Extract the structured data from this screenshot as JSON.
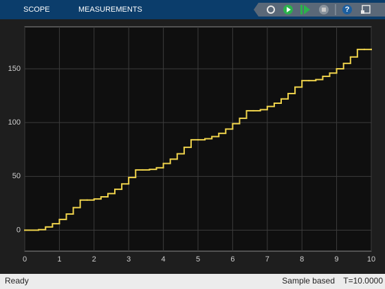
{
  "toolbar": {
    "tabs": [
      "SCOPE",
      "MEASUREMENTS"
    ],
    "help": "?"
  },
  "status": {
    "state": "Ready",
    "mode": "Sample based",
    "time": "T=10.0000"
  },
  "chart_data": {
    "type": "step",
    "color": "#f0d44c",
    "grid": true,
    "xlim": [
      0,
      10
    ],
    "ylim": [
      -19.5,
      189
    ],
    "xticks": [
      0,
      1,
      2,
      3,
      4,
      5,
      6,
      7,
      8,
      9,
      10
    ],
    "yticks": [
      0,
      50,
      100,
      150
    ],
    "x": [
      0,
      0.2,
      0.4,
      0.6,
      0.8,
      1,
      1.2,
      1.4,
      1.6,
      1.8,
      2,
      2.2,
      2.4,
      2.6,
      2.8,
      3,
      3.2,
      3.4,
      3.6,
      3.8,
      4,
      4.2,
      4.4,
      4.6,
      4.8,
      5,
      5.2,
      5.4,
      5.6,
      5.8,
      6,
      6.2,
      6.4,
      6.6,
      6.8,
      7,
      7.2,
      7.4,
      7.6,
      7.8,
      8,
      8.2,
      8.4,
      8.6,
      8.8,
      9,
      9.2,
      9.4,
      9.6,
      9.8,
      10
    ],
    "values": [
      0,
      0,
      0.5,
      3,
      6,
      10,
      15,
      21,
      28,
      28,
      29,
      31,
      34,
      38,
      43,
      49,
      56,
      56,
      56.5,
      58,
      62,
      66,
      71,
      77,
      84,
      84,
      85,
      87,
      90,
      94,
      99,
      104,
      111,
      111,
      112,
      115,
      118,
      122,
      127,
      133,
      139,
      139,
      140,
      143,
      146,
      150,
      155,
      161,
      168,
      168,
      168
    ]
  }
}
